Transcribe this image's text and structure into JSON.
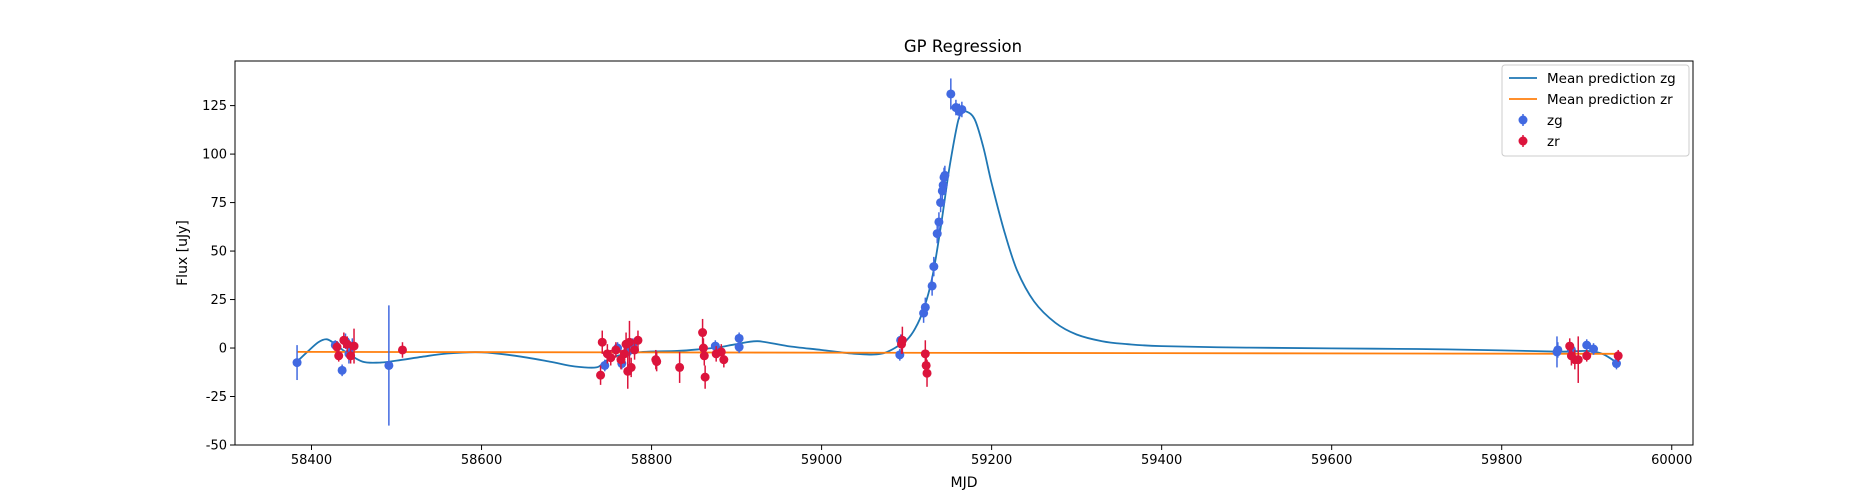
{
  "chart_data": {
    "type": "scatter",
    "title": "GP Regression",
    "xlabel": "MJD",
    "ylabel": "Flux [uJy]",
    "xlim": [
      58310,
      60025
    ],
    "ylim": [
      -50,
      148
    ],
    "xticks": [
      58400,
      58600,
      58800,
      59000,
      59200,
      59400,
      59600,
      59800,
      60000
    ],
    "yticks": [
      -50,
      -25,
      0,
      25,
      50,
      75,
      100,
      125
    ],
    "grid": false,
    "legend_position": "upper right",
    "legend": [
      {
        "label": "Mean prediction zg",
        "kind": "line",
        "color": "#1f77b4"
      },
      {
        "label": "Mean prediction zr",
        "kind": "line",
        "color": "#ff7f0e"
      },
      {
        "label": "zg",
        "kind": "errorbar",
        "color": "#4169e1"
      },
      {
        "label": "zr",
        "kind": "errorbar",
        "color": "#dc143c"
      }
    ],
    "series": [
      {
        "name": "Mean prediction zg",
        "kind": "line",
        "color": "#1f77b4",
        "x": [
          58383,
          58395,
          58408,
          58418,
          58428,
          58440,
          58460,
          58480,
          58500,
          58530,
          58560,
          58600,
          58640,
          58680,
          58710,
          58735,
          58745,
          58760,
          58790,
          58830,
          58860,
          58880,
          58900,
          58925,
          58960,
          59000,
          59040,
          59070,
          59090,
          59100,
          59110,
          59120,
          59130,
          59140,
          59150,
          59160,
          59165,
          59170,
          59180,
          59190,
          59200,
          59215,
          59230,
          59250,
          59275,
          59300,
          59330,
          59360,
          59400,
          59500,
          59600,
          59700,
          59800,
          59860,
          59880,
          59900,
          59915,
          59925,
          59935
        ],
        "y": [
          -7,
          -2,
          3,
          4.5,
          2,
          -2,
          -7,
          -7.5,
          -6.5,
          -4.5,
          -2.8,
          -2.2,
          -4,
          -7,
          -9.5,
          -10,
          -7,
          -4,
          -2,
          -1.5,
          -0.5,
          0.5,
          2,
          3.5,
          1,
          -1,
          -3,
          -3,
          1,
          4,
          10,
          20,
          36,
          62,
          92,
          116,
          121,
          122,
          118,
          104,
          85,
          60,
          40,
          24,
          13,
          7,
          3.5,
          2,
          1,
          0.2,
          -0.2,
          -0.5,
          -1.2,
          -1.8,
          -1.8,
          -1.5,
          -2.5,
          -4.5,
          -7.5
        ]
      },
      {
        "name": "Mean prediction zr",
        "kind": "line",
        "color": "#ff7f0e",
        "x": [
          58383,
          59935
        ],
        "y": [
          -2.0,
          -3.0
        ]
      },
      {
        "name": "zg",
        "kind": "errorbar",
        "color": "#4169e1",
        "points": [
          [
            58383,
            -7.5,
            9
          ],
          [
            58428,
            1.5,
            2.5
          ],
          [
            58436,
            -11.5,
            3
          ],
          [
            58440,
            3.5,
            4
          ],
          [
            58444,
            -3,
            5
          ],
          [
            58448,
            1,
            4
          ],
          [
            58491,
            -9,
            31
          ],
          [
            58745,
            -9,
            3
          ],
          [
            58760,
            0,
            3
          ],
          [
            58765,
            -8,
            3
          ],
          [
            58772,
            -2,
            3
          ],
          [
            58778,
            2,
            3
          ],
          [
            58875,
            1,
            3
          ],
          [
            58903,
            0.5,
            3
          ],
          [
            58903,
            5,
            3
          ],
          [
            59092,
            -3.5,
            3
          ],
          [
            59093,
            4,
            3
          ],
          [
            59120,
            18,
            5
          ],
          [
            59122,
            21,
            5
          ],
          [
            59130,
            32,
            5
          ],
          [
            59132,
            42,
            5
          ],
          [
            59136,
            59,
            5
          ],
          [
            59138,
            65,
            5
          ],
          [
            59140,
            75,
            5
          ],
          [
            59142,
            81,
            5
          ],
          [
            59143,
            84,
            5
          ],
          [
            59144,
            88,
            5
          ],
          [
            59145,
            89,
            5
          ],
          [
            59152,
            131,
            8
          ],
          [
            59158,
            124,
            4
          ],
          [
            59162,
            122,
            4
          ],
          [
            59165,
            123,
            4
          ],
          [
            59865,
            -2,
            8
          ],
          [
            59866,
            -1,
            4
          ],
          [
            59882,
            -1,
            4
          ],
          [
            59900,
            1.5,
            3
          ],
          [
            59908,
            -0.5,
            3
          ],
          [
            59935,
            -8,
            3
          ]
        ]
      },
      {
        "name": "zr",
        "kind": "errorbar",
        "color": "#dc143c",
        "points": [
          [
            58430,
            0.5,
            3
          ],
          [
            58432,
            -4,
            3
          ],
          [
            58438,
            4,
            4
          ],
          [
            58442,
            2,
            4
          ],
          [
            58446,
            -4,
            4
          ],
          [
            58450,
            1,
            9
          ],
          [
            58507,
            -1,
            4
          ],
          [
            58740,
            -14,
            5
          ],
          [
            58742,
            3,
            6
          ],
          [
            58748,
            -3,
            5
          ],
          [
            58752,
            -5,
            4
          ],
          [
            58758,
            -1,
            4
          ],
          [
            58764,
            -6,
            5
          ],
          [
            58768,
            -3,
            5
          ],
          [
            58770,
            2,
            6
          ],
          [
            58772,
            -12,
            9
          ],
          [
            58774,
            3,
            11
          ],
          [
            58776,
            -10,
            5
          ],
          [
            58780,
            -1,
            5
          ],
          [
            58784,
            4,
            5
          ],
          [
            58805,
            -6,
            5
          ],
          [
            58806,
            -7,
            5
          ],
          [
            58833,
            -10,
            8
          ],
          [
            58860,
            8,
            7
          ],
          [
            58861,
            0,
            5
          ],
          [
            58862,
            -4,
            5
          ],
          [
            58863,
            -15,
            6
          ],
          [
            58876,
            -3,
            4
          ],
          [
            58882,
            -2,
            4
          ],
          [
            58885,
            -6,
            4
          ],
          [
            59094,
            2,
            5
          ],
          [
            59095,
            4,
            7
          ],
          [
            59122,
            -3,
            7
          ],
          [
            59123,
            -9,
            5
          ],
          [
            59124,
            -13,
            7
          ],
          [
            59880,
            1,
            4
          ],
          [
            59882,
            -4,
            5
          ],
          [
            59886,
            -6,
            5
          ],
          [
            59890,
            -6,
            12
          ],
          [
            59900,
            -4,
            3
          ],
          [
            59937,
            -4,
            3
          ]
        ]
      }
    ]
  }
}
